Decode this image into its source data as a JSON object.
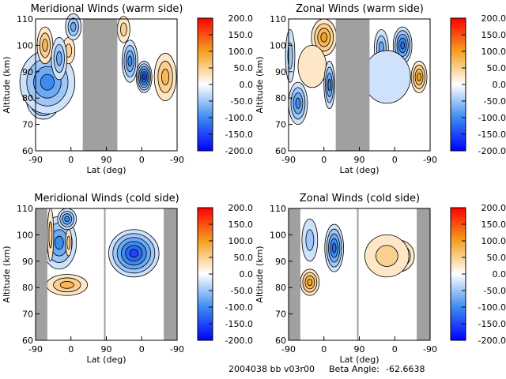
{
  "footer": {
    "run_id": "2004038 bb v03r00",
    "beta_label": "Beta Angle:",
    "beta_value": "-62.6638"
  },
  "chart_data": [
    {
      "type": "heatmap",
      "title": "Meridional Winds (warm side)",
      "xlabel": "Lat (deg)",
      "ylabel": "Altitude (km)",
      "xticks": [
        "-90",
        "0",
        "90",
        "0",
        "-90"
      ],
      "yticks": [
        "60",
        "70",
        "80",
        "90",
        "100",
        "110"
      ],
      "ylim": [
        60,
        110
      ],
      "colorbar": {
        "min": -200,
        "max": 200,
        "ticks": [
          "200.0",
          "150.0",
          "100.0",
          "50.0",
          "0.0",
          "-50.0",
          "-100.0",
          "-150.0",
          "-200.0"
        ]
      },
      "no_data_bands": [
        [
          60,
          104
        ]
      ],
      "features": [
        {
          "lat": 10,
          "alt": 80,
          "value": -140,
          "rlat": 22,
          "ralt": 8
        },
        {
          "lat": 15,
          "alt": 86,
          "value": -90,
          "rlat": 35,
          "ralt": 12
        },
        {
          "lat": 12,
          "alt": 100,
          "value": 70,
          "rlat": 10,
          "ralt": 7
        },
        {
          "lat": 42,
          "alt": 98,
          "value": 40,
          "rlat": 8,
          "ralt": 5
        },
        {
          "lat": 30,
          "alt": 95,
          "value": -70,
          "rlat": 10,
          "ralt": 8
        },
        {
          "lat": 48,
          "alt": 107,
          "value": -70,
          "rlat": 10,
          "ralt": 5
        },
        {
          "lat": 120,
          "alt": 94,
          "value": -110,
          "rlat": 10,
          "ralt": 8
        },
        {
          "lat": 138,
          "alt": 88,
          "value": -140,
          "rlat": 10,
          "ralt": 6
        },
        {
          "lat": 165,
          "alt": 88,
          "value": 80,
          "rlat": 14,
          "ralt": 9
        },
        {
          "lat": 112,
          "alt": 106,
          "value": 40,
          "rlat": 8,
          "ralt": 5
        }
      ]
    },
    {
      "type": "heatmap",
      "title": "Zonal Winds (warm side)",
      "xlabel": "Lat (deg)",
      "ylabel": "Altitude (km)",
      "xticks": [
        "-90",
        "0",
        "90",
        "0",
        "-90"
      ],
      "yticks": [
        "60",
        "70",
        "80",
        "90",
        "100",
        "110"
      ],
      "ylim": [
        60,
        110
      ],
      "colorbar": {
        "min": -200,
        "max": 200,
        "ticks": [
          "200.0",
          "150.0",
          "100.0",
          "50.0",
          "0.0",
          "-50.0",
          "-100.0",
          "-150.0",
          "-200.0"
        ]
      },
      "no_data_bands": [
        [
          60,
          103
        ]
      ],
      "features": [
        {
          "lat": 12,
          "alt": 78,
          "value": -110,
          "rlat": 12,
          "ralt": 8
        },
        {
          "lat": 2,
          "alt": 96,
          "value": -60,
          "rlat": 6,
          "ralt": 10
        },
        {
          "lat": 45,
          "alt": 103,
          "value": 90,
          "rlat": 16,
          "ralt": 7
        },
        {
          "lat": 30,
          "alt": 92,
          "value": 20,
          "rlat": 18,
          "ralt": 8
        },
        {
          "lat": 52,
          "alt": 85,
          "value": -100,
          "rlat": 7,
          "ralt": 9
        },
        {
          "lat": 118,
          "alt": 99,
          "value": -80,
          "rlat": 9,
          "ralt": 7
        },
        {
          "lat": 145,
          "alt": 100,
          "value": -120,
          "rlat": 12,
          "ralt": 7
        },
        {
          "lat": 166,
          "alt": 88,
          "value": 90,
          "rlat": 10,
          "ralt": 6
        },
        {
          "lat": 125,
          "alt": 88,
          "value": -30,
          "rlat": 30,
          "ralt": 10
        }
      ]
    },
    {
      "type": "heatmap",
      "title": "Meridional Winds (cold side)",
      "xlabel": "Lat (deg)",
      "ylabel": "Altitude (km)",
      "xticks": [
        "-90",
        "0",
        "90",
        "0",
        "-90"
      ],
      "yticks": [
        "60",
        "70",
        "80",
        "90",
        "100",
        "110"
      ],
      "ylim": [
        60,
        110
      ],
      "colorbar": {
        "min": -200,
        "max": 200,
        "ticks": [
          "200.0",
          "150.0",
          "100.0",
          "50.0",
          "0.0",
          "-50.0",
          "-100.0",
          "-150.0",
          "-200.0"
        ]
      },
      "no_data_bands": [
        [
          0,
          15
        ],
        [
          87,
          89
        ],
        [
          163,
          180
        ]
      ],
      "features": [
        {
          "lat": 40,
          "alt": 81,
          "value": 80,
          "rlat": 26,
          "ralt": 4
        },
        {
          "lat": 30,
          "alt": 97,
          "value": -90,
          "rlat": 22,
          "ralt": 10
        },
        {
          "lat": 42,
          "alt": 97,
          "value": 40,
          "rlat": 4,
          "ralt": 5
        },
        {
          "lat": 40,
          "alt": 106,
          "value": -110,
          "rlat": 12,
          "ralt": 4
        },
        {
          "lat": 125,
          "alt": 93,
          "value": -150,
          "rlat": 32,
          "ralt": 9
        },
        {
          "lat": 19,
          "alt": 100,
          "value": 40,
          "rlat": 4,
          "ralt": 10
        }
      ]
    },
    {
      "type": "heatmap",
      "title": "Zonal Winds (cold side)",
      "xlabel": "Lat (deg)",
      "ylabel": "Altitude (km)",
      "xticks": [
        "-90",
        "0",
        "90",
        "0",
        "-90"
      ],
      "yticks": [
        "60",
        "70",
        "80",
        "90",
        "100",
        "110"
      ],
      "ylim": [
        60,
        110
      ],
      "colorbar": {
        "min": -200,
        "max": 200,
        "ticks": [
          "200.0",
          "150.0",
          "100.0",
          "50.0",
          "0.0",
          "-50.0",
          "-100.0",
          "-150.0",
          "-200.0"
        ]
      },
      "no_data_bands": [
        [
          0,
          15
        ],
        [
          87,
          89
        ],
        [
          163,
          180
        ]
      ],
      "features": [
        {
          "lat": 27,
          "alt": 82,
          "value": 100,
          "rlat": 12,
          "ralt": 5
        },
        {
          "lat": 58,
          "alt": 95,
          "value": -130,
          "rlat": 12,
          "ralt": 9
        },
        {
          "lat": 27,
          "alt": 98,
          "value": -60,
          "rlat": 10,
          "ralt": 8
        },
        {
          "lat": 140,
          "alt": 92,
          "value": 110,
          "rlat": 20,
          "ralt": 6
        },
        {
          "lat": 125,
          "alt": 92,
          "value": 40,
          "rlat": 28,
          "ralt": 8
        }
      ]
    }
  ]
}
